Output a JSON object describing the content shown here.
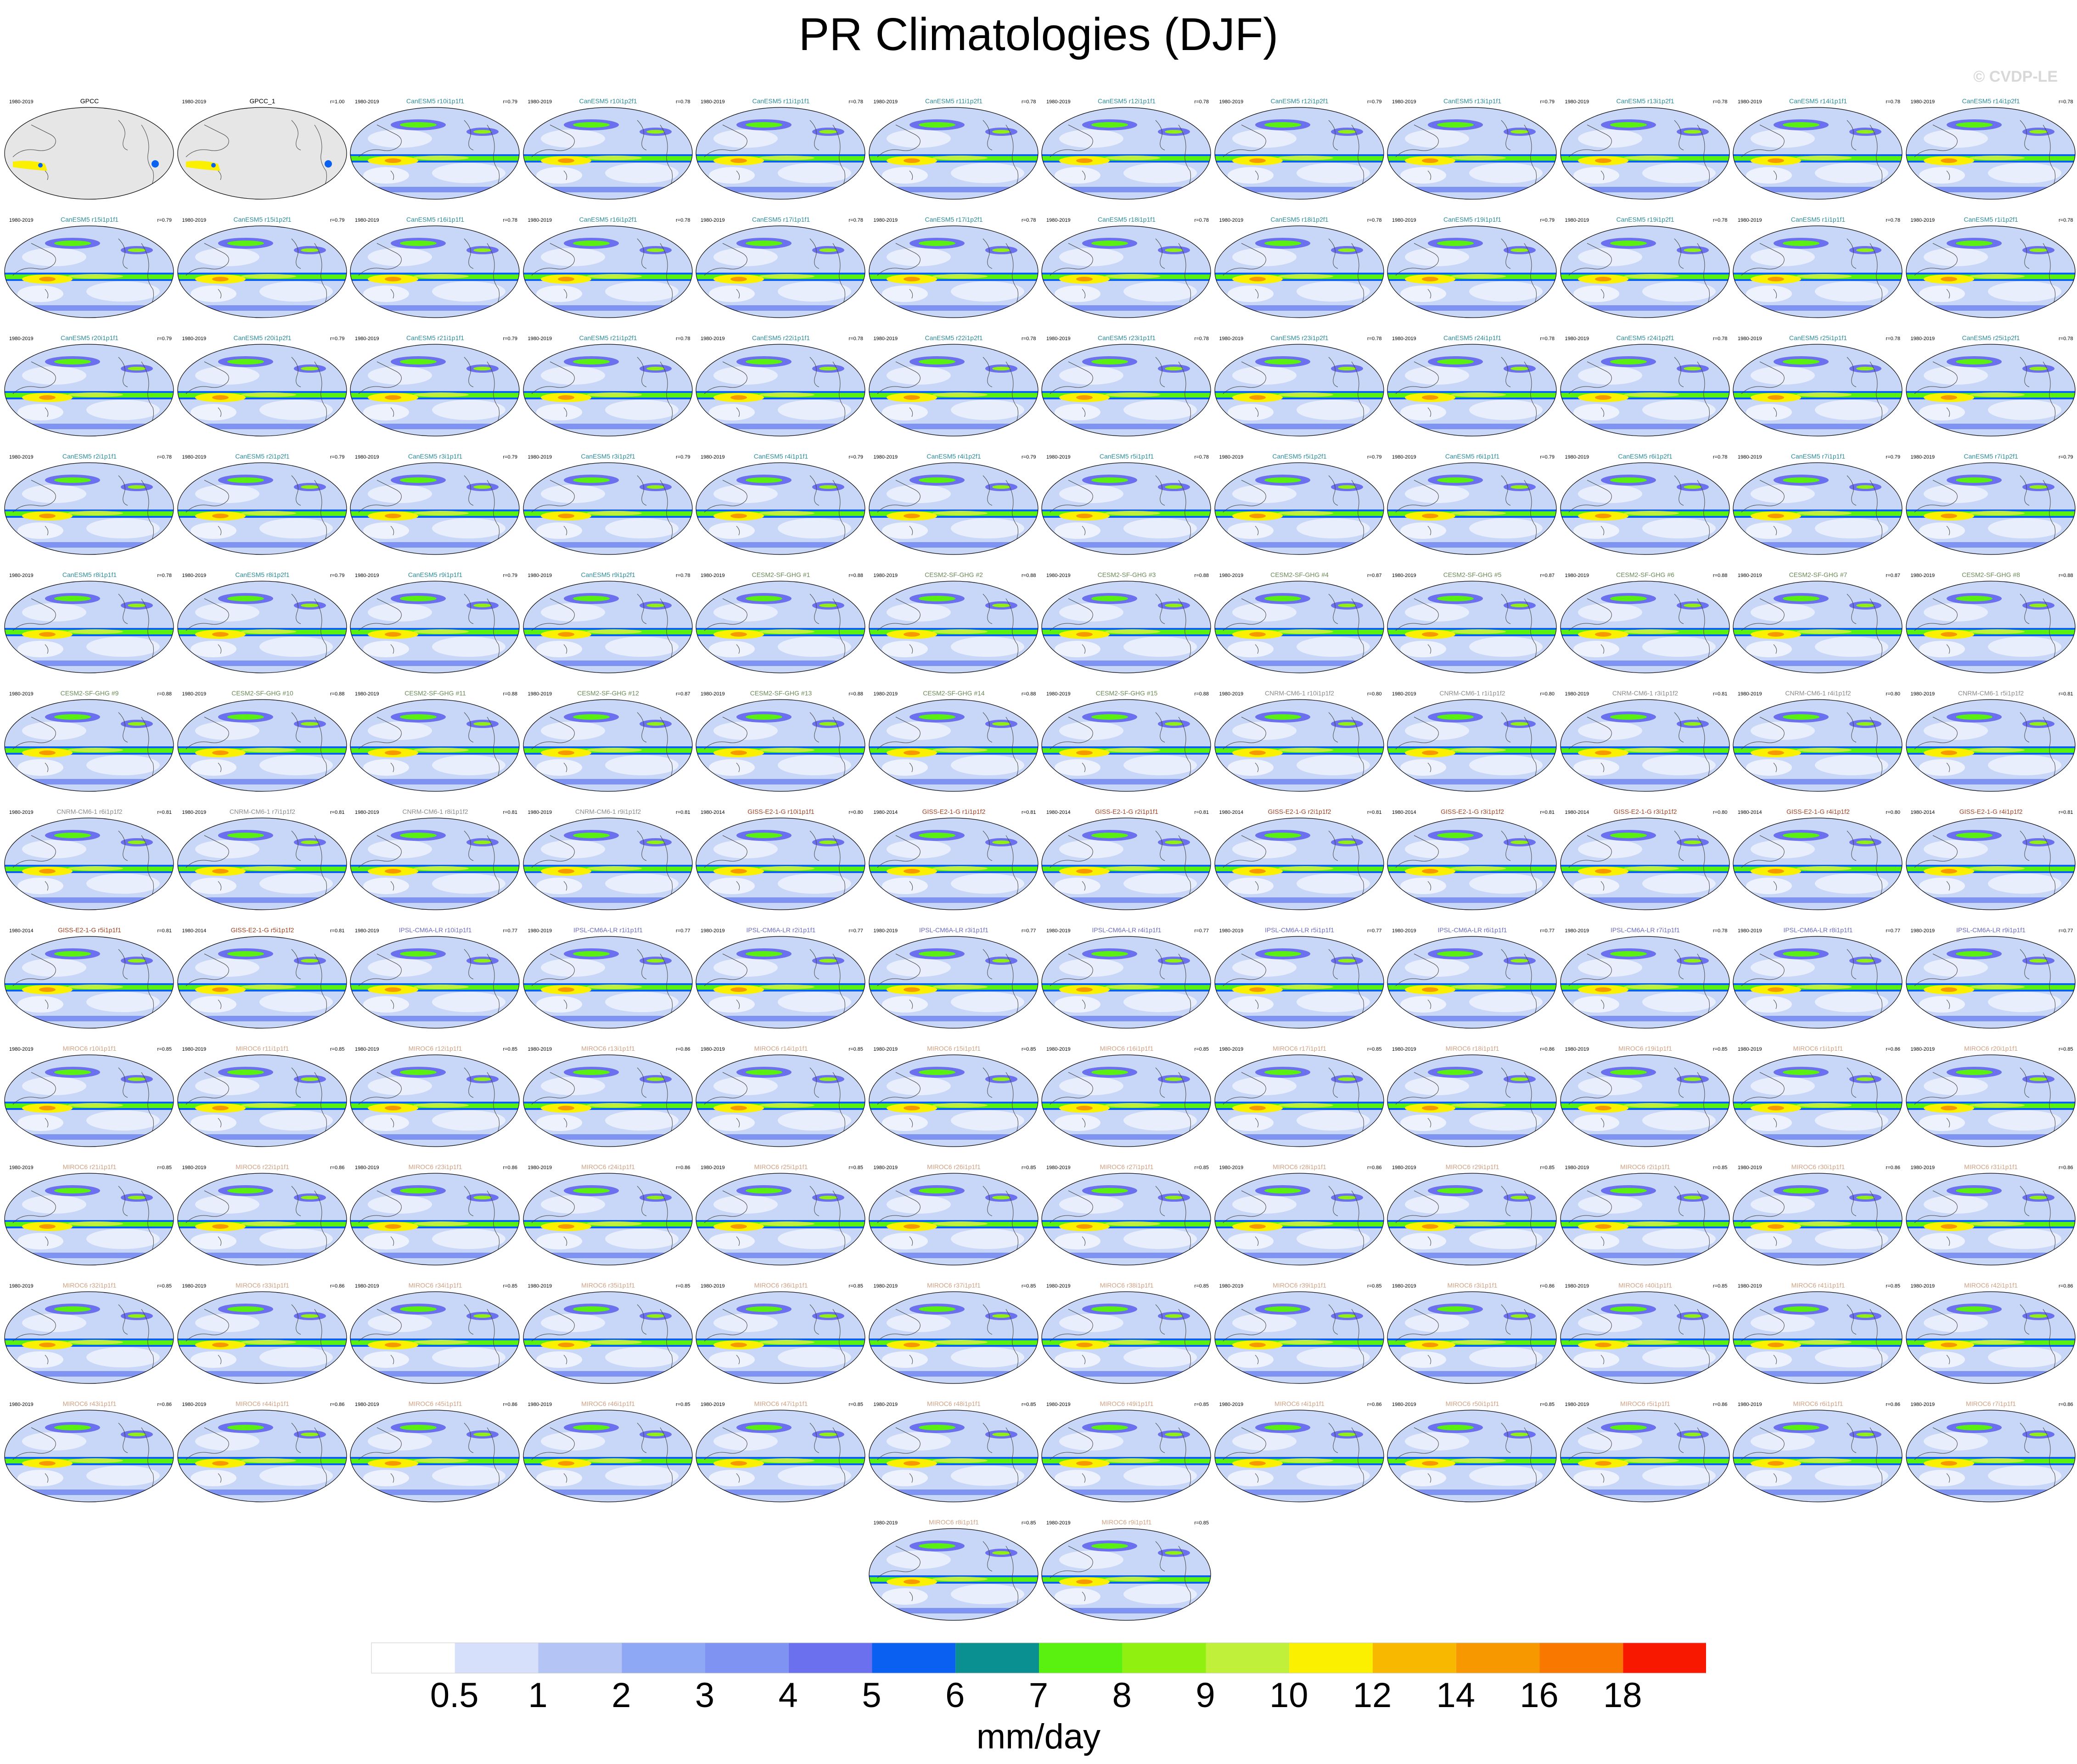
{
  "title": "PR Climatologies (DJF)",
  "copyright": "© CVDP-LE",
  "colors": {
    "CanESM5": "#2a8c9a",
    "CESM2-SF-GHG": "#6a8a55",
    "CNRM-CM6-1": "#8a8a8a",
    "GISS-E2-1-G": "#a04020",
    "IPSL-CM6A-LR": "#6a6ac0",
    "MIROC6": "#d0a080",
    "GPCC": "#000000"
  },
  "panels": [
    {
      "name": "GPCC",
      "years": "1980-2019",
      "r": "",
      "model": "GPCC",
      "obs": true
    },
    {
      "name": "GPCC_1",
      "years": "1980-2019",
      "r": "r=1.00",
      "model": "GPCC",
      "obs": true
    },
    {
      "name": "CanESM5 r10i1p1f1",
      "years": "1980-2019",
      "r": "r=0.79",
      "model": "CanESM5"
    },
    {
      "name": "CanESM5 r10i1p2f1",
      "years": "1980-2019",
      "r": "r=0.78",
      "model": "CanESM5"
    },
    {
      "name": "CanESM5 r11i1p1f1",
      "years": "1980-2019",
      "r": "r=0.78",
      "model": "CanESM5"
    },
    {
      "name": "CanESM5 r11i1p2f1",
      "years": "1980-2019",
      "r": "r=0.78",
      "model": "CanESM5"
    },
    {
      "name": "CanESM5 r12i1p1f1",
      "years": "1980-2019",
      "r": "r=0.78",
      "model": "CanESM5"
    },
    {
      "name": "CanESM5 r12i1p2f1",
      "years": "1980-2019",
      "r": "r=0.79",
      "model": "CanESM5"
    },
    {
      "name": "CanESM5 r13i1p1f1",
      "years": "1980-2019",
      "r": "r=0.79",
      "model": "CanESM5"
    },
    {
      "name": "CanESM5 r13i1p2f1",
      "years": "1980-2019",
      "r": "r=0.78",
      "model": "CanESM5"
    },
    {
      "name": "CanESM5 r14i1p1f1",
      "years": "1980-2019",
      "r": "r=0.78",
      "model": "CanESM5"
    },
    {
      "name": "CanESM5 r14i1p2f1",
      "years": "1980-2019",
      "r": "r=0.78",
      "model": "CanESM5"
    },
    {
      "name": "CanESM5 r15i1p1f1",
      "years": "1980-2019",
      "r": "r=0.79",
      "model": "CanESM5"
    },
    {
      "name": "CanESM5 r15i1p2f1",
      "years": "1980-2019",
      "r": "r=0.79",
      "model": "CanESM5"
    },
    {
      "name": "CanESM5 r16i1p1f1",
      "years": "1980-2019",
      "r": "r=0.78",
      "model": "CanESM5"
    },
    {
      "name": "CanESM5 r16i1p2f1",
      "years": "1980-2019",
      "r": "r=0.78",
      "model": "CanESM5"
    },
    {
      "name": "CanESM5 r17i1p1f1",
      "years": "1980-2019",
      "r": "r=0.78",
      "model": "CanESM5"
    },
    {
      "name": "CanESM5 r17i1p2f1",
      "years": "1980-2019",
      "r": "r=0.78",
      "model": "CanESM5"
    },
    {
      "name": "CanESM5 r18i1p1f1",
      "years": "1980-2019",
      "r": "r=0.78",
      "model": "CanESM5"
    },
    {
      "name": "CanESM5 r18i1p2f1",
      "years": "1980-2019",
      "r": "r=0.78",
      "model": "CanESM5"
    },
    {
      "name": "CanESM5 r19i1p1f1",
      "years": "1980-2019",
      "r": "r=0.79",
      "model": "CanESM5"
    },
    {
      "name": "CanESM5 r19i1p2f1",
      "years": "1980-2019",
      "r": "r=0.78",
      "model": "CanESM5"
    },
    {
      "name": "CanESM5 r1i1p1f1",
      "years": "1980-2019",
      "r": "r=0.78",
      "model": "CanESM5"
    },
    {
      "name": "CanESM5 r1i1p2f1",
      "years": "1980-2019",
      "r": "r=0.78",
      "model": "CanESM5"
    },
    {
      "name": "CanESM5 r20i1p1f1",
      "years": "1980-2019",
      "r": "r=0.79",
      "model": "CanESM5"
    },
    {
      "name": "CanESM5 r20i1p2f1",
      "years": "1980-2019",
      "r": "r=0.79",
      "model": "CanESM5"
    },
    {
      "name": "CanESM5 r21i1p1f1",
      "years": "1980-2019",
      "r": "r=0.79",
      "model": "CanESM5"
    },
    {
      "name": "CanESM5 r21i1p2f1",
      "years": "1980-2019",
      "r": "r=0.78",
      "model": "CanESM5"
    },
    {
      "name": "CanESM5 r22i1p1f1",
      "years": "1980-2019",
      "r": "r=0.78",
      "model": "CanESM5"
    },
    {
      "name": "CanESM5 r22i1p2f1",
      "years": "1980-2019",
      "r": "r=0.78",
      "model": "CanESM5"
    },
    {
      "name": "CanESM5 r23i1p1f1",
      "years": "1980-2019",
      "r": "r=0.78",
      "model": "CanESM5"
    },
    {
      "name": "CanESM5 r23i1p2f1",
      "years": "1980-2019",
      "r": "r=0.78",
      "model": "CanESM5"
    },
    {
      "name": "CanESM5 r24i1p1f1",
      "years": "1980-2019",
      "r": "r=0.78",
      "model": "CanESM5"
    },
    {
      "name": "CanESM5 r24i1p2f1",
      "years": "1980-2019",
      "r": "r=0.78",
      "model": "CanESM5"
    },
    {
      "name": "CanESM5 r25i1p1f1",
      "years": "1980-2019",
      "r": "r=0.78",
      "model": "CanESM5"
    },
    {
      "name": "CanESM5 r25i1p2f1",
      "years": "1980-2019",
      "r": "r=0.78",
      "model": "CanESM5"
    },
    {
      "name": "CanESM5 r2i1p1f1",
      "years": "1980-2019",
      "r": "r=0.78",
      "model": "CanESM5"
    },
    {
      "name": "CanESM5 r2i1p2f1",
      "years": "1980-2019",
      "r": "r=0.79",
      "model": "CanESM5"
    },
    {
      "name": "CanESM5 r3i1p1f1",
      "years": "1980-2019",
      "r": "r=0.79",
      "model": "CanESM5"
    },
    {
      "name": "CanESM5 r3i1p2f1",
      "years": "1980-2019",
      "r": "r=0.79",
      "model": "CanESM5"
    },
    {
      "name": "CanESM5 r4i1p1f1",
      "years": "1980-2019",
      "r": "r=0.79",
      "model": "CanESM5"
    },
    {
      "name": "CanESM5 r4i1p2f1",
      "years": "1980-2019",
      "r": "r=0.79",
      "model": "CanESM5"
    },
    {
      "name": "CanESM5 r5i1p1f1",
      "years": "1980-2019",
      "r": "r=0.78",
      "model": "CanESM5"
    },
    {
      "name": "CanESM5 r5i1p2f1",
      "years": "1980-2019",
      "r": "r=0.79",
      "model": "CanESM5"
    },
    {
      "name": "CanESM5 r6i1p1f1",
      "years": "1980-2019",
      "r": "r=0.79",
      "model": "CanESM5"
    },
    {
      "name": "CanESM5 r6i1p2f1",
      "years": "1980-2019",
      "r": "r=0.78",
      "model": "CanESM5"
    },
    {
      "name": "CanESM5 r7i1p1f1",
      "years": "1980-2019",
      "r": "r=0.79",
      "model": "CanESM5"
    },
    {
      "name": "CanESM5 r7i1p2f1",
      "years": "1980-2019",
      "r": "r=0.79",
      "model": "CanESM5"
    },
    {
      "name": "CanESM5 r8i1p1f1",
      "years": "1980-2019",
      "r": "r=0.78",
      "model": "CanESM5"
    },
    {
      "name": "CanESM5 r8i1p2f1",
      "years": "1980-2019",
      "r": "r=0.79",
      "model": "CanESM5"
    },
    {
      "name": "CanESM5 r9i1p1f1",
      "years": "1980-2019",
      "r": "r=0.79",
      "model": "CanESM5"
    },
    {
      "name": "CanESM5 r9i1p2f1",
      "years": "1980-2019",
      "r": "r=0.78",
      "model": "CanESM5"
    },
    {
      "name": "CESM2-SF-GHG #1",
      "years": "1980-2019",
      "r": "r=0.88",
      "model": "CESM2-SF-GHG"
    },
    {
      "name": "CESM2-SF-GHG #2",
      "years": "1980-2019",
      "r": "r=0.88",
      "model": "CESM2-SF-GHG"
    },
    {
      "name": "CESM2-SF-GHG #3",
      "years": "1980-2019",
      "r": "r=0.88",
      "model": "CESM2-SF-GHG"
    },
    {
      "name": "CESM2-SF-GHG #4",
      "years": "1980-2019",
      "r": "r=0.87",
      "model": "CESM2-SF-GHG"
    },
    {
      "name": "CESM2-SF-GHG #5",
      "years": "1980-2019",
      "r": "r=0.87",
      "model": "CESM2-SF-GHG"
    },
    {
      "name": "CESM2-SF-GHG #6",
      "years": "1980-2019",
      "r": "r=0.88",
      "model": "CESM2-SF-GHG"
    },
    {
      "name": "CESM2-SF-GHG #7",
      "years": "1980-2019",
      "r": "r=0.87",
      "model": "CESM2-SF-GHG"
    },
    {
      "name": "CESM2-SF-GHG #8",
      "years": "1980-2019",
      "r": "r=0.88",
      "model": "CESM2-SF-GHG"
    },
    {
      "name": "CESM2-SF-GHG #9",
      "years": "1980-2019",
      "r": "r=0.88",
      "model": "CESM2-SF-GHG"
    },
    {
      "name": "CESM2-SF-GHG #10",
      "years": "1980-2019",
      "r": "r=0.88",
      "model": "CESM2-SF-GHG"
    },
    {
      "name": "CESM2-SF-GHG #11",
      "years": "1980-2019",
      "r": "r=0.88",
      "model": "CESM2-SF-GHG"
    },
    {
      "name": "CESM2-SF-GHG #12",
      "years": "1980-2019",
      "r": "r=0.87",
      "model": "CESM2-SF-GHG"
    },
    {
      "name": "CESM2-SF-GHG #13",
      "years": "1980-2019",
      "r": "r=0.88",
      "model": "CESM2-SF-GHG"
    },
    {
      "name": "CESM2-SF-GHG #14",
      "years": "1980-2019",
      "r": "r=0.88",
      "model": "CESM2-SF-GHG"
    },
    {
      "name": "CESM2-SF-GHG #15",
      "years": "1980-2019",
      "r": "r=0.88",
      "model": "CESM2-SF-GHG"
    },
    {
      "name": "CNRM-CM6-1 r10i1p1f2",
      "years": "1980-2019",
      "r": "r=0.80",
      "model": "CNRM-CM6-1"
    },
    {
      "name": "CNRM-CM6-1 r1i1p1f2",
      "years": "1980-2019",
      "r": "r=0.80",
      "model": "CNRM-CM6-1"
    },
    {
      "name": "CNRM-CM6-1 r3i1p1f2",
      "years": "1980-2019",
      "r": "r=0.81",
      "model": "CNRM-CM6-1"
    },
    {
      "name": "CNRM-CM6-1 r4i1p1f2",
      "years": "1980-2019",
      "r": "r=0.80",
      "model": "CNRM-CM6-1"
    },
    {
      "name": "CNRM-CM6-1 r5i1p1f2",
      "years": "1980-2019",
      "r": "r=0.81",
      "model": "CNRM-CM6-1"
    },
    {
      "name": "CNRM-CM6-1 r6i1p1f2",
      "years": "1980-2019",
      "r": "r=0.81",
      "model": "CNRM-CM6-1"
    },
    {
      "name": "CNRM-CM6-1 r7i1p1f2",
      "years": "1980-2019",
      "r": "r=0.81",
      "model": "CNRM-CM6-1"
    },
    {
      "name": "CNRM-CM6-1 r8i1p1f2",
      "years": "1980-2019",
      "r": "r=0.81",
      "model": "CNRM-CM6-1"
    },
    {
      "name": "CNRM-CM6-1 r9i1p1f2",
      "years": "1980-2019",
      "r": "r=0.81",
      "model": "CNRM-CM6-1"
    },
    {
      "name": "GISS-E2-1-G r10i1p1f1",
      "years": "1980-2014",
      "r": "r=0.80",
      "model": "GISS-E2-1-G"
    },
    {
      "name": "GISS-E2-1-G r1i1p1f2",
      "years": "1980-2014",
      "r": "r=0.81",
      "model": "GISS-E2-1-G"
    },
    {
      "name": "GISS-E2-1-G r2i1p1f1",
      "years": "1980-2014",
      "r": "r=0.81",
      "model": "GISS-E2-1-G"
    },
    {
      "name": "GISS-E2-1-G r2i1p1f2",
      "years": "1980-2014",
      "r": "r=0.81",
      "model": "GISS-E2-1-G"
    },
    {
      "name": "GISS-E2-1-G r3i1p1f2",
      "years": "1980-2014",
      "r": "r=0.81",
      "model": "GISS-E2-1-G"
    },
    {
      "name": "GISS-E2-1-G r3i1p1f2",
      "years": "1980-2014",
      "r": "r=0.80",
      "model": "GISS-E2-1-G"
    },
    {
      "name": "GISS-E2-1-G r4i1p1f2",
      "years": "1980-2014",
      "r": "r=0.80",
      "model": "GISS-E2-1-G"
    },
    {
      "name": "GISS-E2-1-G r4i1p1f2",
      "years": "1980-2014",
      "r": "r=0.81",
      "model": "GISS-E2-1-G"
    },
    {
      "name": "GISS-E2-1-G r5i1p1f1",
      "years": "1980-2014",
      "r": "r=0.81",
      "model": "GISS-E2-1-G"
    },
    {
      "name": "GISS-E2-1-G r5i1p1f2",
      "years": "1980-2014",
      "r": "r=0.81",
      "model": "GISS-E2-1-G"
    },
    {
      "name": "IPSL-CM6A-LR r10i1p1f1",
      "years": "1980-2019",
      "r": "r=0.77",
      "model": "IPSL-CM6A-LR"
    },
    {
      "name": "IPSL-CM6A-LR r1i1p1f1",
      "years": "1980-2019",
      "r": "r=0.77",
      "model": "IPSL-CM6A-LR"
    },
    {
      "name": "IPSL-CM6A-LR r2i1p1f1",
      "years": "1980-2019",
      "r": "r=0.77",
      "model": "IPSL-CM6A-LR"
    },
    {
      "name": "IPSL-CM6A-LR r3i1p1f1",
      "years": "1980-2019",
      "r": "r=0.77",
      "model": "IPSL-CM6A-LR"
    },
    {
      "name": "IPSL-CM6A-LR r4i1p1f1",
      "years": "1980-2019",
      "r": "r=0.77",
      "model": "IPSL-CM6A-LR"
    },
    {
      "name": "IPSL-CM6A-LR r5i1p1f1",
      "years": "1980-2019",
      "r": "r=0.77",
      "model": "IPSL-CM6A-LR"
    },
    {
      "name": "IPSL-CM6A-LR r6i1p1f1",
      "years": "1980-2019",
      "r": "r=0.77",
      "model": "IPSL-CM6A-LR"
    },
    {
      "name": "IPSL-CM6A-LR r7i1p1f1",
      "years": "1980-2019",
      "r": "r=0.78",
      "model": "IPSL-CM6A-LR"
    },
    {
      "name": "IPSL-CM6A-LR r8i1p1f1",
      "years": "1980-2019",
      "r": "r=0.77",
      "model": "IPSL-CM6A-LR"
    },
    {
      "name": "IPSL-CM6A-LR r9i1p1f1",
      "years": "1980-2019",
      "r": "r=0.77",
      "model": "IPSL-CM6A-LR"
    },
    {
      "name": "MIROC6 r10i1p1f1",
      "years": "1980-2019",
      "r": "r=0.85",
      "model": "MIROC6"
    },
    {
      "name": "MIROC6 r11i1p1f1",
      "years": "1980-2019",
      "r": "r=0.85",
      "model": "MIROC6"
    },
    {
      "name": "MIROC6 r12i1p1f1",
      "years": "1980-2019",
      "r": "r=0.85",
      "model": "MIROC6"
    },
    {
      "name": "MIROC6 r13i1p1f1",
      "years": "1980-2019",
      "r": "r=0.86",
      "model": "MIROC6"
    },
    {
      "name": "MIROC6 r14i1p1f1",
      "years": "1980-2019",
      "r": "r=0.85",
      "model": "MIROC6"
    },
    {
      "name": "MIROC6 r15i1p1f1",
      "years": "1980-2019",
      "r": "r=0.85",
      "model": "MIROC6"
    },
    {
      "name": "MIROC6 r16i1p1f1",
      "years": "1980-2019",
      "r": "r=0.85",
      "model": "MIROC6"
    },
    {
      "name": "MIROC6 r17i1p1f1",
      "years": "1980-2019",
      "r": "r=0.85",
      "model": "MIROC6"
    },
    {
      "name": "MIROC6 r18i1p1f1",
      "years": "1980-2019",
      "r": "r=0.86",
      "model": "MIROC6"
    },
    {
      "name": "MIROC6 r19i1p1f1",
      "years": "1980-2019",
      "r": "r=0.85",
      "model": "MIROC6"
    },
    {
      "name": "MIROC6 r1i1p1f1",
      "years": "1980-2019",
      "r": "r=0.86",
      "model": "MIROC6"
    },
    {
      "name": "MIROC6 r20i1p1f1",
      "years": "1980-2019",
      "r": "r=0.85",
      "model": "MIROC6"
    },
    {
      "name": "MIROC6 r21i1p1f1",
      "years": "1980-2019",
      "r": "r=0.85",
      "model": "MIROC6"
    },
    {
      "name": "MIROC6 r22i1p1f1",
      "years": "1980-2019",
      "r": "r=0.86",
      "model": "MIROC6"
    },
    {
      "name": "MIROC6 r23i1p1f1",
      "years": "1980-2019",
      "r": "r=0.86",
      "model": "MIROC6"
    },
    {
      "name": "MIROC6 r24i1p1f1",
      "years": "1980-2019",
      "r": "r=0.86",
      "model": "MIROC6"
    },
    {
      "name": "MIROC6 r25i1p1f1",
      "years": "1980-2019",
      "r": "r=0.85",
      "model": "MIROC6"
    },
    {
      "name": "MIROC6 r26i1p1f1",
      "years": "1980-2019",
      "r": "r=0.85",
      "model": "MIROC6"
    },
    {
      "name": "MIROC6 r27i1p1f1",
      "years": "1980-2019",
      "r": "r=0.85",
      "model": "MIROC6"
    },
    {
      "name": "MIROC6 r28i1p1f1",
      "years": "1980-2019",
      "r": "r=0.86",
      "model": "MIROC6"
    },
    {
      "name": "MIROC6 r29i1p1f1",
      "years": "1980-2019",
      "r": "r=0.85",
      "model": "MIROC6"
    },
    {
      "name": "MIROC6 r2i1p1f1",
      "years": "1980-2019",
      "r": "r=0.85",
      "model": "MIROC6"
    },
    {
      "name": "MIROC6 r30i1p1f1",
      "years": "1980-2019",
      "r": "r=0.86",
      "model": "MIROC6"
    },
    {
      "name": "MIROC6 r31i1p1f1",
      "years": "1980-2019",
      "r": "r=0.86",
      "model": "MIROC6"
    },
    {
      "name": "MIROC6 r32i1p1f1",
      "years": "1980-2019",
      "r": "r=0.85",
      "model": "MIROC6"
    },
    {
      "name": "MIROC6 r33i1p1f1",
      "years": "1980-2019",
      "r": "r=0.86",
      "model": "MIROC6"
    },
    {
      "name": "MIROC6 r34i1p1f1",
      "years": "1980-2019",
      "r": "r=0.85",
      "model": "MIROC6"
    },
    {
      "name": "MIROC6 r35i1p1f1",
      "years": "1980-2019",
      "r": "r=0.85",
      "model": "MIROC6"
    },
    {
      "name": "MIROC6 r36i1p1f1",
      "years": "1980-2019",
      "r": "r=0.85",
      "model": "MIROC6"
    },
    {
      "name": "MIROC6 r37i1p1f1",
      "years": "1980-2019",
      "r": "r=0.85",
      "model": "MIROC6"
    },
    {
      "name": "MIROC6 r38i1p1f1",
      "years": "1980-2019",
      "r": "r=0.85",
      "model": "MIROC6"
    },
    {
      "name": "MIROC6 r39i1p1f1",
      "years": "1980-2019",
      "r": "r=0.85",
      "model": "MIROC6"
    },
    {
      "name": "MIROC6 r3i1p1f1",
      "years": "1980-2019",
      "r": "r=0.86",
      "model": "MIROC6"
    },
    {
      "name": "MIROC6 r40i1p1f1",
      "years": "1980-2019",
      "r": "r=0.85",
      "model": "MIROC6"
    },
    {
      "name": "MIROC6 r41i1p1f1",
      "years": "1980-2019",
      "r": "r=0.85",
      "model": "MIROC6"
    },
    {
      "name": "MIROC6 r42i1p1f1",
      "years": "1980-2019",
      "r": "r=0.86",
      "model": "MIROC6"
    },
    {
      "name": "MIROC6 r43i1p1f1",
      "years": "1980-2019",
      "r": "r=0.86",
      "model": "MIROC6"
    },
    {
      "name": "MIROC6 r44i1p1f1",
      "years": "1980-2019",
      "r": "r=0.86",
      "model": "MIROC6"
    },
    {
      "name": "MIROC6 r45i1p1f1",
      "years": "1980-2019",
      "r": "r=0.86",
      "model": "MIROC6"
    },
    {
      "name": "MIROC6 r46i1p1f1",
      "years": "1980-2019",
      "r": "r=0.85",
      "model": "MIROC6"
    },
    {
      "name": "MIROC6 r47i1p1f1",
      "years": "1980-2019",
      "r": "r=0.85",
      "model": "MIROC6"
    },
    {
      "name": "MIROC6 r48i1p1f1",
      "years": "1980-2019",
      "r": "r=0.85",
      "model": "MIROC6"
    },
    {
      "name": "MIROC6 r49i1p1f1",
      "years": "1980-2019",
      "r": "r=0.85",
      "model": "MIROC6"
    },
    {
      "name": "MIROC6 r4i1p1f1",
      "years": "1980-2019",
      "r": "r=0.86",
      "model": "MIROC6"
    },
    {
      "name": "MIROC6 r50i1p1f1",
      "years": "1980-2019",
      "r": "r=0.85",
      "model": "MIROC6"
    },
    {
      "name": "MIROC6 r5i1p1f1",
      "years": "1980-2019",
      "r": "r=0.86",
      "model": "MIROC6"
    },
    {
      "name": "MIROC6 r6i1p1f1",
      "years": "1980-2019",
      "r": "r=0.86",
      "model": "MIROC6"
    },
    {
      "name": "MIROC6 r7i1p1f1",
      "years": "1980-2019",
      "r": "r=0.86",
      "model": "MIROC6"
    },
    {
      "name": "MIROC6 r8i1p1f1",
      "years": "1980-2019",
      "r": "r=0.85",
      "model": "MIROC6"
    },
    {
      "name": "MIROC6 r9i1p1f1",
      "years": "1980-2019",
      "r": "r=0.85",
      "model": "MIROC6"
    }
  ],
  "colorbar": {
    "levels": [
      "0.5",
      "1",
      "2",
      "3",
      "4",
      "5",
      "6",
      "7",
      "8",
      "9",
      "10",
      "12",
      "14",
      "16",
      "18"
    ],
    "colors": [
      "#ffffff",
      "#d6e0fa",
      "#b4c4f5",
      "#8fa8f5",
      "#7f94f2",
      "#6a70ee",
      "#0a60f0",
      "#0a9090",
      "#5af010",
      "#90f010",
      "#c0f03a",
      "#faf000",
      "#f8b800",
      "#f89800",
      "#f87800",
      "#f81800"
    ],
    "units": "mm/day"
  }
}
